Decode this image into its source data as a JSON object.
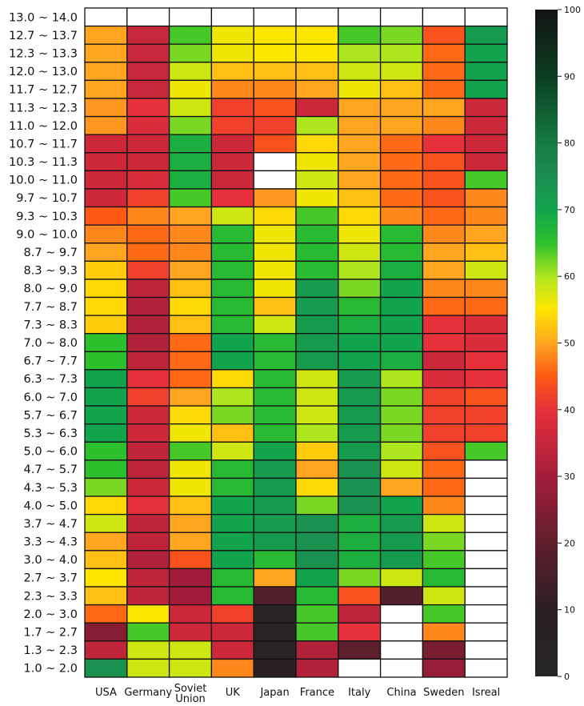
{
  "chart_data": {
    "type": "heatmap",
    "title": "",
    "xlabel": "",
    "ylabel": "",
    "x_categories": [
      "USA",
      "Germany",
      "Soviet Union",
      "UK",
      "Japan",
      "France",
      "Italy",
      "China",
      "Sweden",
      "Isreal"
    ],
    "y_categories": [
      "13.0 ~ 14.0",
      "12.7 ~ 13.7",
      "12.3 ~ 13.3",
      "12.0 ~ 13.0",
      "11.7 ~ 12.7",
      "11.3 ~ 12.3",
      "11.0 ~ 12.0",
      "10.7 ~ 11.7",
      "10.3 ~ 11.3",
      "10.0 ~ 11.0",
      "9.7 ~ 10.7",
      "9.3 ~ 10.3",
      "9.0 ~ 10.0",
      "8.7 ~ 9.7",
      "8.3 ~ 9.3",
      "8.0 ~ 9.0",
      "7.7 ~ 8.7",
      "7.3 ~ 8.3",
      "7.0 ~ 8.0",
      "6.7 ~ 7.7",
      "6.3 ~ 7.3",
      "6.0 ~ 7.0",
      "5.7 ~ 6.7",
      "5.3 ~ 6.3",
      "5.0 ~ 6.0",
      "4.7 ~ 5.7",
      "4.3 ~ 5.3",
      "4.0 ~ 5.0",
      "3.7 ~ 4.7",
      "3.3 ~ 4.3",
      "3.0 ~ 4.0",
      "2.7 ~ 3.7",
      "2.3 ~ 3.3",
      "2.0 ~ 3.0",
      "1.7 ~ 2.7",
      "1.3 ~ 2.3",
      "1.0 ~ 2.0"
    ],
    "values": [
      [
        null,
        null,
        null,
        null,
        null,
        null,
        null,
        null,
        null,
        null
      ],
      [
        50,
        35,
        64,
        56,
        55,
        55,
        64,
        62,
        44,
        72
      ],
      [
        50,
        35,
        62,
        56,
        55,
        55,
        60,
        60,
        46,
        70
      ],
      [
        50,
        35,
        58,
        52,
        52,
        52,
        58,
        58,
        46,
        70
      ],
      [
        50,
        35,
        56,
        48,
        48,
        50,
        56,
        52,
        46,
        70
      ],
      [
        49,
        40,
        58,
        42,
        44,
        36,
        50,
        50,
        50,
        36
      ],
      [
        49,
        38,
        62,
        42,
        42,
        60,
        50,
        50,
        48,
        36
      ],
      [
        36,
        36,
        68,
        36,
        44,
        54,
        50,
        46,
        40,
        36
      ],
      [
        36,
        36,
        68,
        36,
        null,
        56,
        50,
        46,
        44,
        36
      ],
      [
        36,
        38,
        68,
        36,
        null,
        58,
        50,
        46,
        44,
        64
      ],
      [
        36,
        42,
        64,
        40,
        49,
        56,
        52,
        46,
        44,
        48
      ],
      [
        45,
        48,
        50,
        58,
        54,
        64,
        54,
        48,
        46,
        48
      ],
      [
        48,
        46,
        48,
        66,
        56,
        66,
        56,
        66,
        48,
        50
      ],
      [
        50,
        46,
        48,
        66,
        56,
        66,
        58,
        66,
        50,
        52
      ],
      [
        53,
        42,
        50,
        66,
        56,
        66,
        60,
        68,
        50,
        58
      ],
      [
        54,
        34,
        52,
        66,
        56,
        72,
        62,
        70,
        48,
        48
      ],
      [
        54,
        32,
        54,
        66,
        52,
        72,
        66,
        70,
        46,
        46
      ],
      [
        53,
        32,
        52,
        66,
        58,
        72,
        68,
        70,
        40,
        38
      ],
      [
        65,
        32,
        46,
        70,
        66,
        72,
        70,
        70,
        40,
        38
      ],
      [
        65,
        34,
        46,
        70,
        66,
        72,
        70,
        68,
        36,
        40
      ],
      [
        70,
        40,
        46,
        54,
        66,
        58,
        72,
        60,
        38,
        40
      ],
      [
        70,
        42,
        50,
        60,
        66,
        58,
        72,
        62,
        42,
        44
      ],
      [
        70,
        36,
        54,
        62,
        66,
        58,
        72,
        62,
        42,
        42
      ],
      [
        70,
        36,
        56,
        52,
        66,
        60,
        72,
        62,
        42,
        42
      ],
      [
        65,
        34,
        64,
        58,
        70,
        53,
        72,
        60,
        44,
        64
      ],
      [
        65,
        34,
        56,
        66,
        72,
        50,
        74,
        58,
        46,
        null
      ],
      [
        62,
        36,
        56,
        66,
        72,
        54,
        74,
        50,
        46,
        null
      ],
      [
        54,
        40,
        52,
        70,
        72,
        62,
        74,
        70,
        48,
        null
      ],
      [
        58,
        34,
        50,
        70,
        72,
        74,
        68,
        72,
        58,
        null
      ],
      [
        50,
        34,
        50,
        70,
        72,
        74,
        68,
        72,
        62,
        null
      ],
      [
        52,
        32,
        44,
        70,
        66,
        74,
        68,
        72,
        64,
        null
      ],
      [
        55,
        34,
        30,
        66,
        50,
        70,
        62,
        58,
        66,
        null
      ],
      [
        52,
        34,
        30,
        66,
        18,
        66,
        44,
        18,
        58,
        null
      ],
      [
        46,
        55,
        36,
        42,
        3,
        64,
        34,
        null,
        64,
        null
      ],
      [
        26,
        64,
        36,
        36,
        3,
        64,
        40,
        null,
        48,
        null
      ],
      [
        34,
        58,
        58,
        36,
        5,
        32,
        20,
        null,
        24,
        null
      ],
      [
        74,
        58,
        58,
        48,
        10,
        32,
        null,
        null,
        28,
        null
      ]
    ],
    "colorbar": {
      "min": 0,
      "max": 100,
      "ticks": [
        0,
        10,
        20,
        30,
        40,
        50,
        60,
        70,
        80,
        90,
        100
      ]
    },
    "colormap": [
      [
        0,
        "#262626"
      ],
      [
        10,
        "#2b2024"
      ],
      [
        20,
        "#5e1e2c"
      ],
      [
        30,
        "#a31d3a"
      ],
      [
        40,
        "#e8303a"
      ],
      [
        45,
        "#ff5a14"
      ],
      [
        50,
        "#ffa520"
      ],
      [
        55,
        "#ffe600"
      ],
      [
        60,
        "#aee61e"
      ],
      [
        65,
        "#2cc02c"
      ],
      [
        70,
        "#12a44c"
      ],
      [
        75,
        "#1c8c50"
      ],
      [
        80,
        "#157b41"
      ],
      [
        90,
        "#0b3e21"
      ],
      [
        100,
        "#121212"
      ]
    ],
    "missing_color": "#ffffff",
    "grid": true,
    "legend": "colorbar-right"
  }
}
